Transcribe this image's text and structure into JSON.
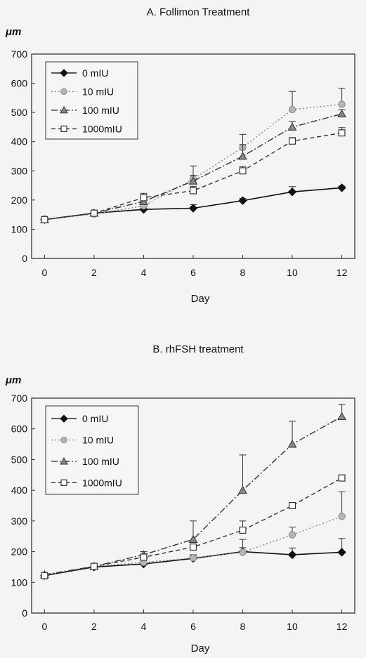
{
  "chart_data": [
    {
      "type": "line",
      "title": "A.  Follimon  Treatment",
      "ylabel": "μm",
      "xlabel": "Day",
      "x": [
        0,
        2,
        4,
        6,
        8,
        10,
        12
      ],
      "xlim": [
        0,
        12
      ],
      "ylim": [
        0,
        700
      ],
      "xticks": [
        "0",
        "2",
        "4",
        "6",
        "8",
        "10",
        "12"
      ],
      "yticks": [
        "0",
        "100",
        "200",
        "300",
        "400",
        "500",
        "600",
        "700"
      ],
      "grid": false,
      "legend_position": "top-left",
      "series": [
        {
          "name": "0  mIU",
          "marker": "diamond",
          "line": "solid",
          "color": "#111111",
          "values": [
            133,
            155,
            168,
            172,
            198,
            228,
            242
          ],
          "errors": [
            8,
            8,
            8,
            12,
            8,
            18,
            6
          ]
        },
        {
          "name": "10  mIU",
          "marker": "circle",
          "line": "dotted",
          "color": "#8a8a8a",
          "values": [
            133,
            152,
            180,
            272,
            380,
            510,
            528
          ],
          "errors": [
            10,
            10,
            20,
            45,
            45,
            62,
            55
          ]
        },
        {
          "name": "100  mIU",
          "marker": "triangle",
          "line": "dashdot",
          "color": "#333333",
          "values": [
            133,
            155,
            195,
            265,
            350,
            450,
            495
          ],
          "errors": [
            8,
            8,
            12,
            20,
            40,
            20,
            15
          ]
        },
        {
          "name": "1000mIU",
          "marker": "square",
          "line": "dashed",
          "color": "#333333",
          "values": [
            133,
            155,
            208,
            232,
            300,
            402,
            430
          ],
          "errors": [
            8,
            10,
            15,
            15,
            15,
            12,
            18
          ]
        }
      ]
    },
    {
      "type": "line",
      "title": "B.  rhFSH  treatment",
      "ylabel": "μm",
      "xlabel": "Day",
      "x": [
        0,
        2,
        4,
        6,
        8,
        10,
        12
      ],
      "xlim": [
        0,
        12
      ],
      "ylim": [
        0,
        700
      ],
      "xticks": [
        "0",
        "2",
        "4",
        "6",
        "8",
        "10",
        "12"
      ],
      "yticks": [
        "0",
        "100",
        "200",
        "300",
        "400",
        "500",
        "600",
        "700"
      ],
      "grid": false,
      "legend_position": "top-left",
      "series": [
        {
          "name": "0  mIU",
          "marker": "diamond",
          "line": "solid",
          "color": "#111111",
          "values": [
            122,
            150,
            160,
            178,
            200,
            190,
            198
          ],
          "errors": [
            5,
            5,
            5,
            8,
            40,
            22,
            45
          ]
        },
        {
          "name": "10  mIU",
          "marker": "circle",
          "line": "dotted",
          "color": "#8a8a8a",
          "values": [
            122,
            152,
            165,
            180,
            198,
            255,
            315
          ],
          "errors": [
            5,
            5,
            8,
            10,
            15,
            25,
            80
          ]
        },
        {
          "name": "100  mIU",
          "marker": "triangle",
          "line": "dashdot",
          "color": "#333333",
          "values": [
            125,
            152,
            190,
            240,
            400,
            550,
            640
          ],
          "errors": [
            5,
            5,
            10,
            60,
            115,
            75,
            40
          ]
        },
        {
          "name": "1000mIU",
          "marker": "square",
          "line": "dashed",
          "color": "#333333",
          "values": [
            122,
            152,
            182,
            215,
            270,
            350,
            440
          ],
          "errors": [
            5,
            5,
            8,
            10,
            30,
            10,
            10
          ]
        }
      ]
    }
  ]
}
